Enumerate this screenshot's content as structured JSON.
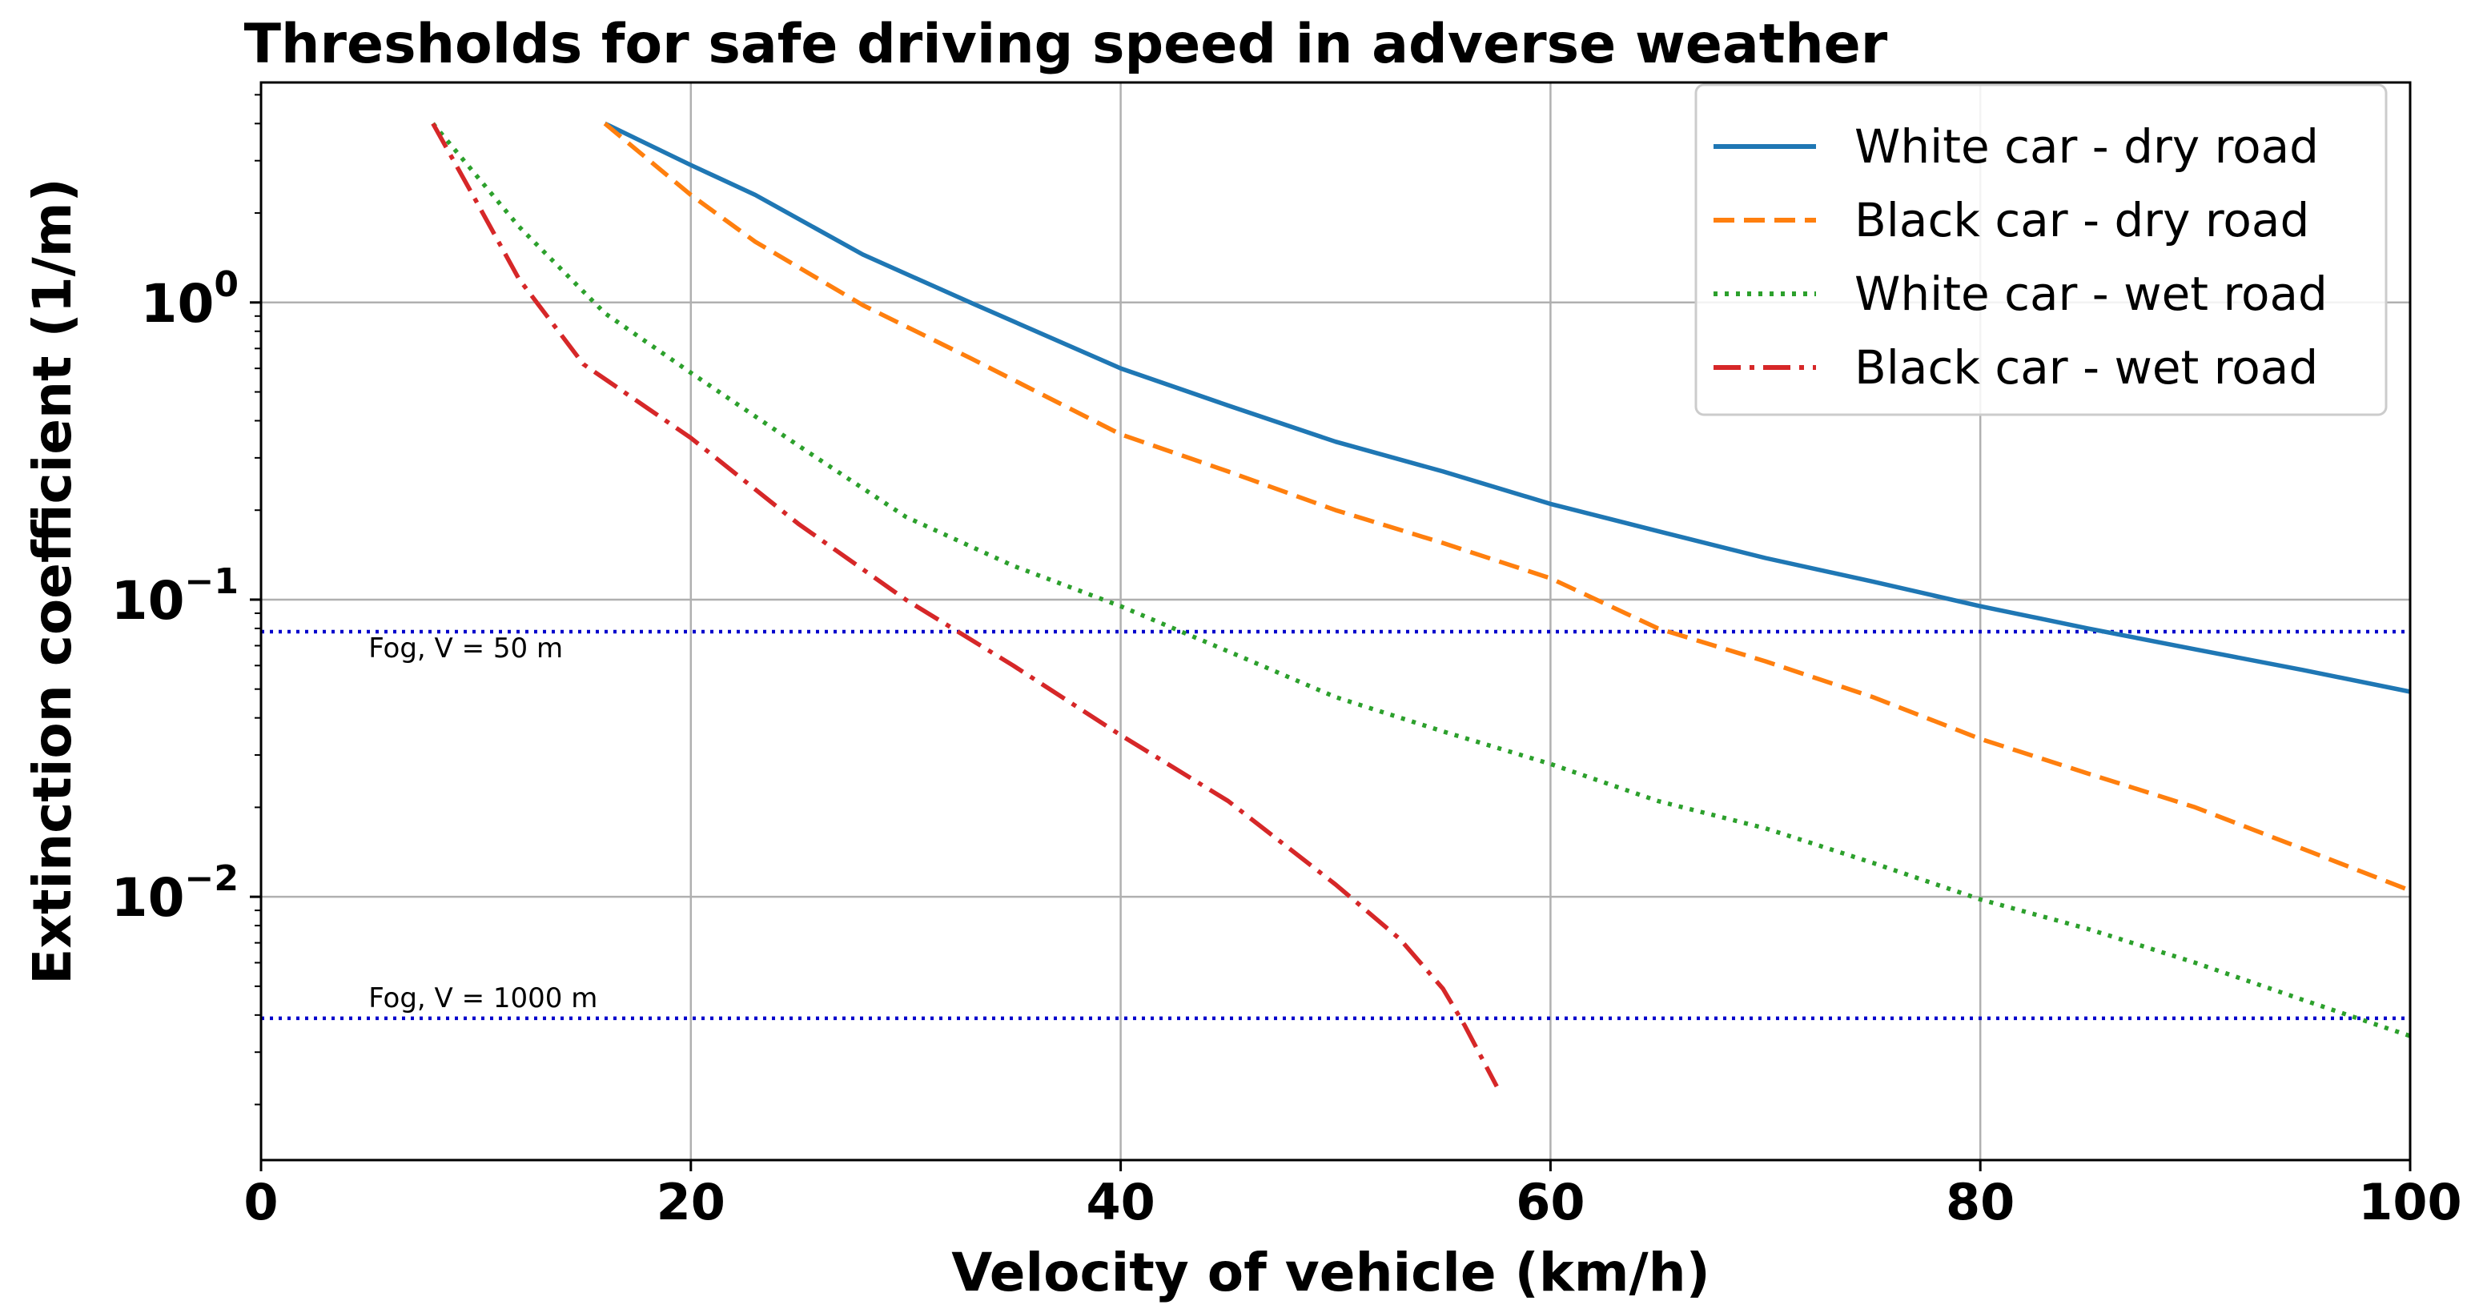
{
  "chart_data": {
    "type": "line",
    "title": "Thresholds for safe driving speed in adverse weather",
    "xlabel": "Velocity of vehicle (km/h)",
    "ylabel": "Extinction coefficient (1/m)",
    "xlim": [
      0,
      100
    ],
    "ylim": [
      0.0013,
      5.5
    ],
    "yscale": "log",
    "grid": true,
    "legend_position": "top-right",
    "x_ticks": [
      {
        "value": 0,
        "label": "0"
      },
      {
        "value": 20,
        "label": "20"
      },
      {
        "value": 40,
        "label": "40"
      },
      {
        "value": 60,
        "label": "60"
      },
      {
        "value": 80,
        "label": "80"
      },
      {
        "value": 100,
        "label": "100"
      }
    ],
    "y_ticks": [
      {
        "value": 1,
        "base": "10",
        "exp": "0"
      },
      {
        "value": 0.1,
        "base": "10",
        "exp": "−1"
      },
      {
        "value": 0.01,
        "base": "10",
        "exp": "−2"
      }
    ],
    "series": [
      {
        "name": "White car - dry road",
        "color": "#1f77b4",
        "style": "solid",
        "points": [
          [
            16,
            4.0
          ],
          [
            20,
            2.9
          ],
          [
            23,
            2.3
          ],
          [
            28,
            1.45
          ],
          [
            33,
            1.0
          ],
          [
            40,
            0.6
          ],
          [
            45,
            0.45
          ],
          [
            50,
            0.34
          ],
          [
            55,
            0.27
          ],
          [
            60,
            0.21
          ],
          [
            65,
            0.17
          ],
          [
            70,
            0.138
          ],
          [
            75,
            0.115
          ],
          [
            80,
            0.095
          ],
          [
            85,
            0.08
          ],
          [
            90,
            0.068
          ],
          [
            95,
            0.058
          ],
          [
            100,
            0.049
          ]
        ]
      },
      {
        "name": "Black car - dry road",
        "color": "#ff7f0e",
        "style": "dashed",
        "points": [
          [
            16,
            4.0
          ],
          [
            20,
            2.3
          ],
          [
            23,
            1.6
          ],
          [
            28,
            0.98
          ],
          [
            33,
            0.65
          ],
          [
            40,
            0.36
          ],
          [
            45,
            0.27
          ],
          [
            50,
            0.2
          ],
          [
            55,
            0.155
          ],
          [
            60,
            0.118
          ],
          [
            65,
            0.08
          ],
          [
            70,
            0.062
          ],
          [
            75,
            0.047
          ],
          [
            80,
            0.034
          ],
          [
            85,
            0.026
          ],
          [
            90,
            0.02
          ],
          [
            95,
            0.0145
          ],
          [
            100,
            0.0105
          ]
        ]
      },
      {
        "name": "White car - wet road",
        "color": "#2ca02c",
        "style": "dotted",
        "points": [
          [
            8,
            4.0
          ],
          [
            12,
            1.8
          ],
          [
            16,
            0.92
          ],
          [
            20,
            0.58
          ],
          [
            25,
            0.33
          ],
          [
            30,
            0.19
          ],
          [
            35,
            0.13
          ],
          [
            40,
            0.095
          ],
          [
            45,
            0.067
          ],
          [
            50,
            0.047
          ],
          [
            55,
            0.036
          ],
          [
            60,
            0.028
          ],
          [
            65,
            0.021
          ],
          [
            70,
            0.017
          ],
          [
            75,
            0.013
          ],
          [
            80,
            0.0098
          ],
          [
            85,
            0.0078
          ],
          [
            90,
            0.006
          ],
          [
            95,
            0.0045
          ],
          [
            100,
            0.0034
          ]
        ]
      },
      {
        "name": "Black car - wet road",
        "color": "#d62728",
        "style": "dashdot",
        "points": [
          [
            8,
            4.0
          ],
          [
            10,
            2.2
          ],
          [
            12,
            1.2
          ],
          [
            15,
            0.62
          ],
          [
            20,
            0.35
          ],
          [
            25,
            0.18
          ],
          [
            30,
            0.1
          ],
          [
            35,
            0.06
          ],
          [
            40,
            0.035
          ],
          [
            45,
            0.021
          ],
          [
            50,
            0.011
          ],
          [
            53,
            0.0072
          ],
          [
            55,
            0.0049
          ],
          [
            56,
            0.0037
          ],
          [
            57.5,
            0.0023
          ]
        ]
      }
    ],
    "annotations": [
      {
        "text": "Fog, V = 50 m",
        "y": 0.078,
        "x_text": 5
      },
      {
        "text": "Fog, V = 1000 m",
        "y": 0.0039,
        "x_text": 5
      }
    ],
    "reference_line_color": "#0000cc"
  }
}
